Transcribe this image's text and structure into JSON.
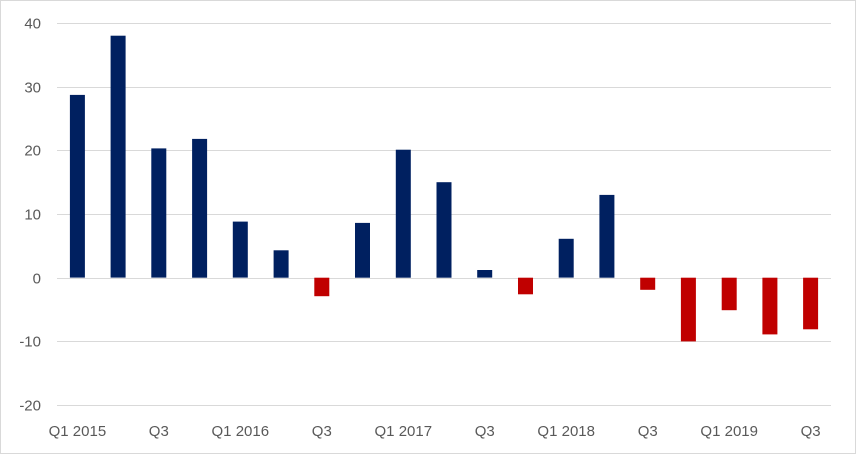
{
  "chart_data": {
    "type": "bar",
    "title": "",
    "xlabel": "",
    "ylabel": "",
    "ylim": [
      -20,
      40
    ],
    "yticks": [
      -20,
      -10,
      0,
      10,
      20,
      30,
      40
    ],
    "grid": true,
    "legend": "none",
    "colors": {
      "positive": "#002060",
      "negative": "#c00000"
    },
    "categories": [
      "Q1 2015",
      "Q2 2015",
      "Q3 2015",
      "Q4 2015",
      "Q1 2016",
      "Q2 2016",
      "Q3 2016",
      "Q4 2016",
      "Q1 2017",
      "Q2 2017",
      "Q3 2017",
      "Q4 2017",
      "Q1 2018",
      "Q2 2018",
      "Q3 2018",
      "Q4 2018",
      "Q1 2019",
      "Q2 2019",
      "Q3 2019"
    ],
    "tick_labels": [
      "Q1 2015",
      "",
      "Q3",
      "",
      "Q1 2016",
      "",
      "Q3",
      "",
      "Q1 2017",
      "",
      "Q3",
      "",
      "Q1 2018",
      "",
      "Q3",
      "",
      "Q1 2019",
      "",
      "Q3"
    ],
    "values": [
      28.7,
      38.0,
      20.3,
      21.8,
      8.8,
      4.3,
      -2.9,
      8.6,
      20.1,
      15.0,
      1.2,
      -2.6,
      6.1,
      13.0,
      -1.9,
      -10.0,
      -5.1,
      -8.9,
      -8.1
    ]
  }
}
